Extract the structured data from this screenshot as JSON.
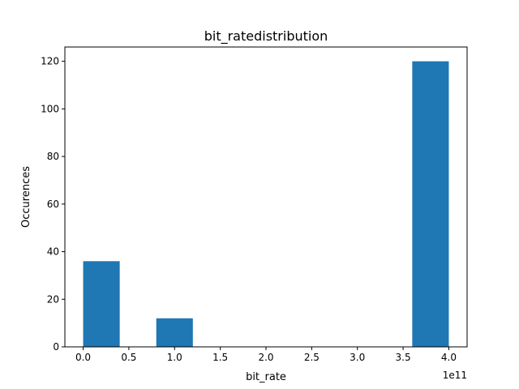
{
  "chart_data": {
    "type": "bar",
    "title": "bit_ratedistribution",
    "xlabel": "bit_rate",
    "ylabel": "Occurences",
    "x_offset_label": "1e11",
    "bar_color": "#1f77b4",
    "xlim": [
      -0.2,
      4.2
    ],
    "ylim": [
      0,
      126
    ],
    "x_ticks": [
      0.0,
      0.5,
      1.0,
      1.5,
      2.0,
      2.5,
      3.0,
      3.5,
      4.0
    ],
    "x_tick_labels": [
      "0.0",
      "0.5",
      "1.0",
      "1.5",
      "2.0",
      "2.5",
      "3.0",
      "3.5",
      "4.0"
    ],
    "y_ticks": [
      0,
      20,
      40,
      60,
      80,
      100,
      120
    ],
    "y_tick_labels": [
      "0",
      "20",
      "40",
      "60",
      "80",
      "100",
      "120"
    ],
    "bins": [
      {
        "start": 0.0,
        "end": 0.4,
        "value": 36
      },
      {
        "start": 0.8,
        "end": 1.2,
        "value": 12
      },
      {
        "start": 3.6,
        "end": 4.0,
        "value": 120
      }
    ],
    "grid": false,
    "legend": "none"
  }
}
